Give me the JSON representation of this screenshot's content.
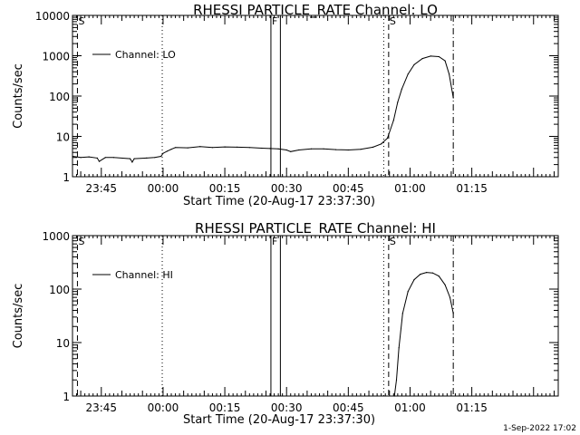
{
  "figure": {
    "timestamp": "1-Sep-2022 17:02"
  },
  "chart_data": [
    {
      "type": "line",
      "title": "RHESSI PARTICLE_RATE Channel: LO",
      "xlabel": "Start Time (20-Aug-17 23:37:30)",
      "ylabel": "Counts/sec",
      "yscale": "log",
      "ylim": [
        1,
        10000
      ],
      "xlim_minutes": [
        -22,
        96
      ],
      "x_ticks": [
        {
          "label": "23:45",
          "t": -15
        },
        {
          "label": "00:00",
          "t": 0
        },
        {
          "label": "00:15",
          "t": 15
        },
        {
          "label": "00:30",
          "t": 30
        },
        {
          "label": "00:45",
          "t": 45
        },
        {
          "label": "01:00",
          "t": 60
        },
        {
          "label": "01:15",
          "t": 75
        }
      ],
      "y_ticks": [
        "1",
        "10",
        "100",
        "1000",
        "10000"
      ],
      "legend": {
        "label": "Channel: LO",
        "placement": "top-left"
      },
      "markers": [
        {
          "t": -20.8,
          "style": "dashed",
          "label": "S"
        },
        {
          "t": -0.2,
          "style": "dotted",
          "label": ""
        },
        {
          "t": 26.2,
          "style": "solid",
          "label": "F"
        },
        {
          "t": 28.5,
          "style": "solid",
          "label": ""
        },
        {
          "t": 53.6,
          "style": "dotted",
          "label": ""
        },
        {
          "t": 54.8,
          "style": "dashed",
          "label": "S"
        },
        {
          "t": 70.5,
          "style": "dashdot",
          "label": ""
        }
      ],
      "series": [
        {
          "name": "Channel: LO",
          "points": [
            [
              -22,
              3.2
            ],
            [
              -20,
              3.0
            ],
            [
              -18,
              3.1
            ],
            [
              -16,
              2.9
            ],
            [
              -15.5,
              2.4
            ],
            [
              -14,
              3.0
            ],
            [
              -12,
              3.0
            ],
            [
              -8,
              2.8
            ],
            [
              -7.5,
              2.3
            ],
            [
              -7,
              2.8
            ],
            [
              -4,
              2.9
            ],
            [
              -2,
              3.0
            ],
            [
              -0.5,
              3.2
            ],
            [
              0,
              3.8
            ],
            [
              1,
              4.3
            ],
            [
              2,
              4.8
            ],
            [
              3,
              5.3
            ],
            [
              6,
              5.2
            ],
            [
              9,
              5.6
            ],
            [
              12,
              5.3
            ],
            [
              15,
              5.5
            ],
            [
              18,
              5.4
            ],
            [
              21,
              5.3
            ],
            [
              24,
              5.1
            ],
            [
              26,
              5.0
            ],
            [
              28,
              4.9
            ],
            [
              30,
              4.6
            ],
            [
              31,
              4.2
            ],
            [
              33,
              4.6
            ],
            [
              36,
              4.9
            ],
            [
              39,
              4.9
            ],
            [
              42,
              4.7
            ],
            [
              45,
              4.6
            ],
            [
              48,
              4.8
            ],
            [
              51,
              5.4
            ],
            [
              53,
              6.5
            ],
            [
              54.5,
              9
            ],
            [
              56,
              25
            ],
            [
              57,
              70
            ],
            [
              58,
              150
            ],
            [
              59.5,
              350
            ],
            [
              61,
              600
            ],
            [
              63,
              850
            ],
            [
              65,
              980
            ],
            [
              67,
              950
            ],
            [
              68.5,
              750
            ],
            [
              69.5,
              350
            ],
            [
              70.5,
              90
            ]
          ]
        }
      ]
    },
    {
      "type": "line",
      "title": "RHESSI PARTICLE_RATE Channel: HI",
      "xlabel": "Start Time (20-Aug-17 23:37:30)",
      "ylabel": "Counts/sec",
      "yscale": "log",
      "ylim": [
        1,
        1000
      ],
      "xlim_minutes": [
        -22,
        96
      ],
      "x_ticks": [
        {
          "label": "23:45",
          "t": -15
        },
        {
          "label": "00:00",
          "t": 0
        },
        {
          "label": "00:15",
          "t": 15
        },
        {
          "label": "00:30",
          "t": 30
        },
        {
          "label": "00:45",
          "t": 45
        },
        {
          "label": "01:00",
          "t": 60
        },
        {
          "label": "01:15",
          "t": 75
        }
      ],
      "y_ticks": [
        "1",
        "10",
        "100",
        "1000"
      ],
      "legend": {
        "label": "Channel: HI",
        "placement": "top-left"
      },
      "markers": [
        {
          "t": -20.8,
          "style": "dashed",
          "label": "S"
        },
        {
          "t": -0.2,
          "style": "dotted",
          "label": ""
        },
        {
          "t": 26.2,
          "style": "solid",
          "label": "F"
        },
        {
          "t": 28.5,
          "style": "solid",
          "label": ""
        },
        {
          "t": 53.6,
          "style": "dotted",
          "label": ""
        },
        {
          "t": 54.8,
          "style": "dashed",
          "label": "S"
        },
        {
          "t": 70.5,
          "style": "dashdot",
          "label": ""
        }
      ],
      "series": [
        {
          "name": "Channel: HI",
          "points": [
            [
              56.2,
              1
            ],
            [
              56.7,
              2
            ],
            [
              57.3,
              8
            ],
            [
              58.2,
              35
            ],
            [
              59.5,
              90
            ],
            [
              61,
              150
            ],
            [
              62.5,
              190
            ],
            [
              64,
              205
            ],
            [
              65.5,
              200
            ],
            [
              67,
              175
            ],
            [
              68.5,
              120
            ],
            [
              69.7,
              70
            ],
            [
              70.5,
              35
            ]
          ]
        }
      ]
    }
  ]
}
